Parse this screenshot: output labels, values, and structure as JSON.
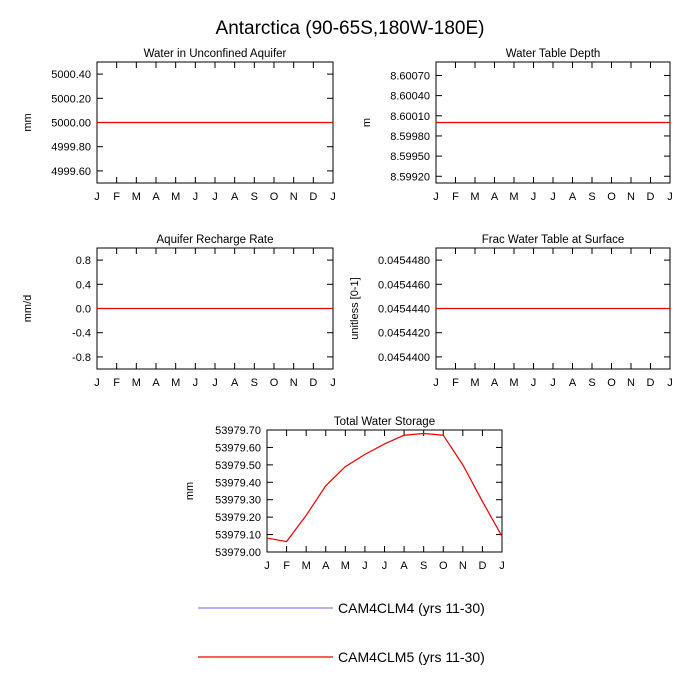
{
  "title": "Antarctica (90-65S,180W-180E)",
  "months": [
    "J",
    "F",
    "M",
    "A",
    "M",
    "J",
    "J",
    "A",
    "S",
    "O",
    "N",
    "D",
    "J"
  ],
  "colors": {
    "series_a": "#8888dd",
    "series_b": "#ee0000"
  },
  "chart_data": [
    {
      "type": "line",
      "title": "Water in Unconfined Aquifer",
      "ylabel": "mm",
      "ylim": [
        4999.5,
        5000.5
      ],
      "yticks": [
        4999.6,
        4999.8,
        5000.0,
        5000.2,
        5000.4
      ],
      "ytick_labels": [
        "4999.60",
        "4999.80",
        "5000.00",
        "5000.20",
        "5000.40"
      ],
      "series": [
        {
          "values": [
            5000,
            5000,
            5000,
            5000,
            5000,
            5000,
            5000,
            5000,
            5000,
            5000,
            5000,
            5000,
            5000
          ]
        }
      ]
    },
    {
      "type": "line",
      "title": "Water Table Depth",
      "ylabel": "m",
      "ylim": [
        8.5991,
        8.6009
      ],
      "yticks": [
        8.5992,
        8.5995,
        8.5998,
        8.6001,
        8.6004,
        8.6007
      ],
      "ytick_labels": [
        "8.59920",
        "8.59950",
        "8.59980",
        "8.60010",
        "8.60040",
        "8.60070"
      ],
      "series": [
        {
          "values": [
            8.6,
            8.6,
            8.6,
            8.6,
            8.6,
            8.6,
            8.6,
            8.6,
            8.6,
            8.6,
            8.6,
            8.6,
            8.6
          ]
        }
      ]
    },
    {
      "type": "line",
      "title": "Aquifer Recharge Rate",
      "ylabel": "mm/d",
      "ylim": [
        -1.0,
        1.0
      ],
      "yticks": [
        -0.8,
        -0.4,
        0.0,
        0.4,
        0.8
      ],
      "ytick_labels": [
        "-0.8",
        "-0.4",
        "0.0",
        "0.4",
        "0.8"
      ],
      "series": [
        {
          "values": [
            0,
            0,
            0,
            0,
            0,
            0,
            0,
            0,
            0,
            0,
            0,
            0,
            0
          ]
        }
      ]
    },
    {
      "type": "line",
      "title": "Frac Water Table at Surface",
      "ylabel": "unitless [0-1]",
      "ylim": [
        0.045439,
        0.045449
      ],
      "yticks": [
        0.04544,
        0.045442,
        0.045444,
        0.045446,
        0.045448
      ],
      "ytick_labels": [
        "0.0454400",
        "0.0454420",
        "0.0454440",
        "0.0454460",
        "0.0454480"
      ],
      "series": [
        {
          "values": [
            0.045444,
            0.045444,
            0.045444,
            0.045444,
            0.045444,
            0.045444,
            0.045444,
            0.045444,
            0.045444,
            0.045444,
            0.045444,
            0.045444,
            0.045444
          ]
        }
      ]
    },
    {
      "type": "line",
      "title": "Total Water Storage",
      "ylabel": "mm",
      "ylim": [
        53979.0,
        53979.7
      ],
      "yticks": [
        53979.0,
        53979.1,
        53979.2,
        53979.3,
        53979.4,
        53979.5,
        53979.6,
        53979.7
      ],
      "ytick_labels": [
        "53979.00",
        "53979.10",
        "53979.20",
        "53979.30",
        "53979.40",
        "53979.50",
        "53979.60",
        "53979.70"
      ],
      "series": [
        {
          "values": [
            53979.08,
            53979.06,
            53979.21,
            53979.38,
            53979.49,
            53979.56,
            53979.62,
            53979.67,
            53979.68,
            53979.67,
            53979.5,
            53979.29,
            53979.09
          ]
        }
      ]
    }
  ],
  "legend": [
    {
      "label": "CAM4CLM4 (yrs 11-30)",
      "color": "#8888dd"
    },
    {
      "label": "CAM4CLM5 (yrs 11-30)",
      "color": "#ee0000"
    }
  ]
}
